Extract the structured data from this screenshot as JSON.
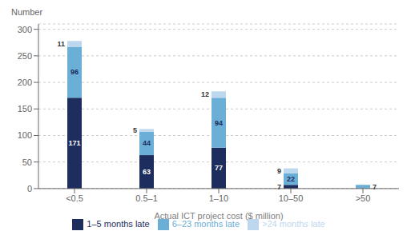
{
  "chart_data": {
    "type": "bar",
    "stacked": true,
    "xlabel": "Actual ICT project cost ($ million)",
    "ylabel": "Number",
    "categories": [
      "<0.5",
      "0.5–1",
      "1–10",
      "10–50",
      ">50"
    ],
    "series": [
      {
        "name": "1–5 months late",
        "color": "#1c2d5e",
        "values": [
          171,
          63,
          77,
          7,
          0
        ]
      },
      {
        "name": "6–23 months late",
        "color": "#6baed6",
        "values": [
          96,
          44,
          94,
          22,
          7
        ]
      },
      {
        "name": ">24 months late",
        "color": "#bdd7ee",
        "values": [
          11,
          5,
          12,
          9,
          0
        ]
      }
    ],
    "ylim": [
      0,
      310
    ],
    "yticks": [
      0,
      50,
      100,
      150,
      200,
      250,
      300
    ],
    "grid": true,
    "legend": "bottom",
    "data_labels": true
  }
}
